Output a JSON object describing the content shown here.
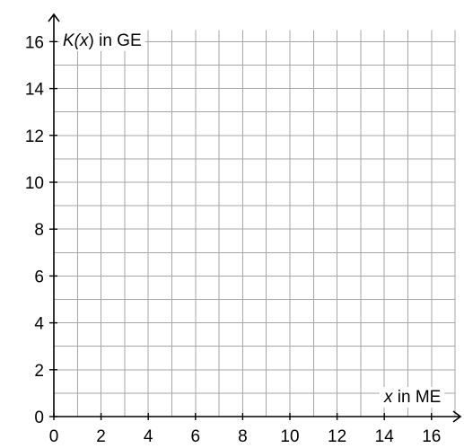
{
  "chart_data": {
    "type": "line",
    "title": "",
    "xlabel_var": "x",
    "xlabel_rest": " in ME",
    "ylabel_var_prefix": "K(",
    "ylabel_var": "x",
    "ylabel_var_suffix": ")",
    "ylabel_rest": " in GE",
    "xlim": [
      0,
      17
    ],
    "ylim": [
      0,
      16.5
    ],
    "x_ticks": [
      0,
      2,
      4,
      6,
      8,
      10,
      12,
      14,
      16
    ],
    "y_ticks": [
      0,
      2,
      4,
      6,
      8,
      10,
      12,
      14,
      16
    ],
    "x_tick_labels": [
      "0",
      "2",
      "4",
      "6",
      "8",
      "10",
      "12",
      "14",
      "16"
    ],
    "y_tick_labels": [
      "0",
      "2",
      "4",
      "6",
      "8",
      "10",
      "12",
      "14",
      "16"
    ],
    "grid": true,
    "grid_step": 1,
    "series": []
  }
}
